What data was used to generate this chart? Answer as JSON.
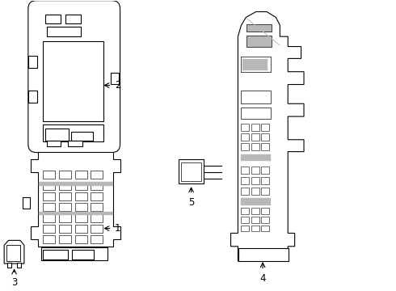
{
  "bg_color": "#ffffff",
  "line_color": "#000000",
  "gray_color": "#b8b8b8",
  "lw": 0.8
}
